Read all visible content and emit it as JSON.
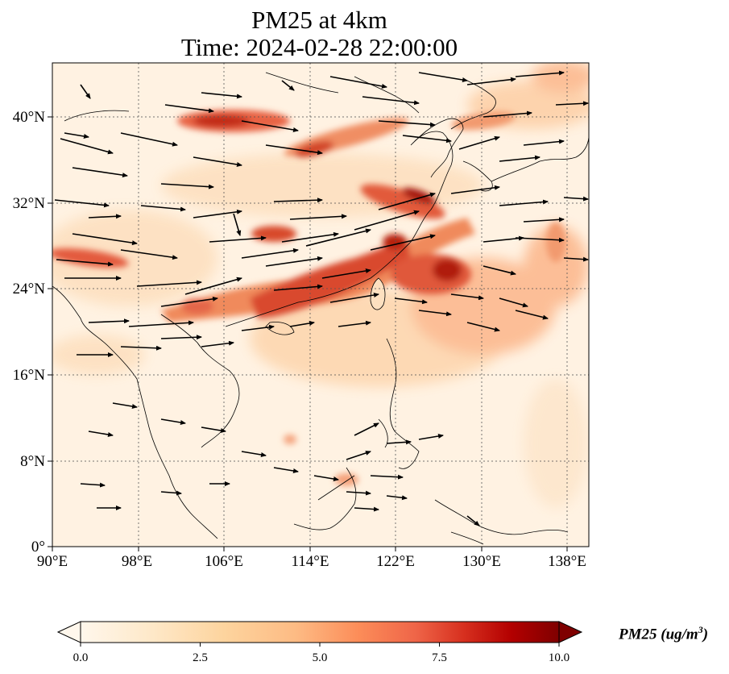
{
  "title": {
    "line1": "PM25 at 4km",
    "line2": "Time: 2024-02-28 22:00:00"
  },
  "map": {
    "lon_ticks": [
      "90°E",
      "98°E",
      "106°E",
      "114°E",
      "122°E",
      "130°E",
      "138°E"
    ],
    "lat_ticks": [
      "40°N",
      "32°N",
      "24°N",
      "16°N",
      "8°N",
      "0°"
    ],
    "extent": {
      "lon": [
        90,
        140
      ],
      "lat": [
        0,
        45
      ]
    },
    "gridlines": true,
    "colormap": "OrRd"
  },
  "colorbar": {
    "label_text": "PM25 (ug/m",
    "label_sup": "3",
    "label_close": ")",
    "ticks": [
      "0.0",
      "2.5",
      "5.0",
      "7.5",
      "10.0"
    ],
    "range": [
      0,
      10
    ],
    "extend": "both",
    "colors": [
      "#fff7ec",
      "#fee8c8",
      "#fdd49e",
      "#fdbb84",
      "#fc8d59",
      "#ef6548",
      "#d7301f",
      "#b30000",
      "#7f0000"
    ]
  }
}
